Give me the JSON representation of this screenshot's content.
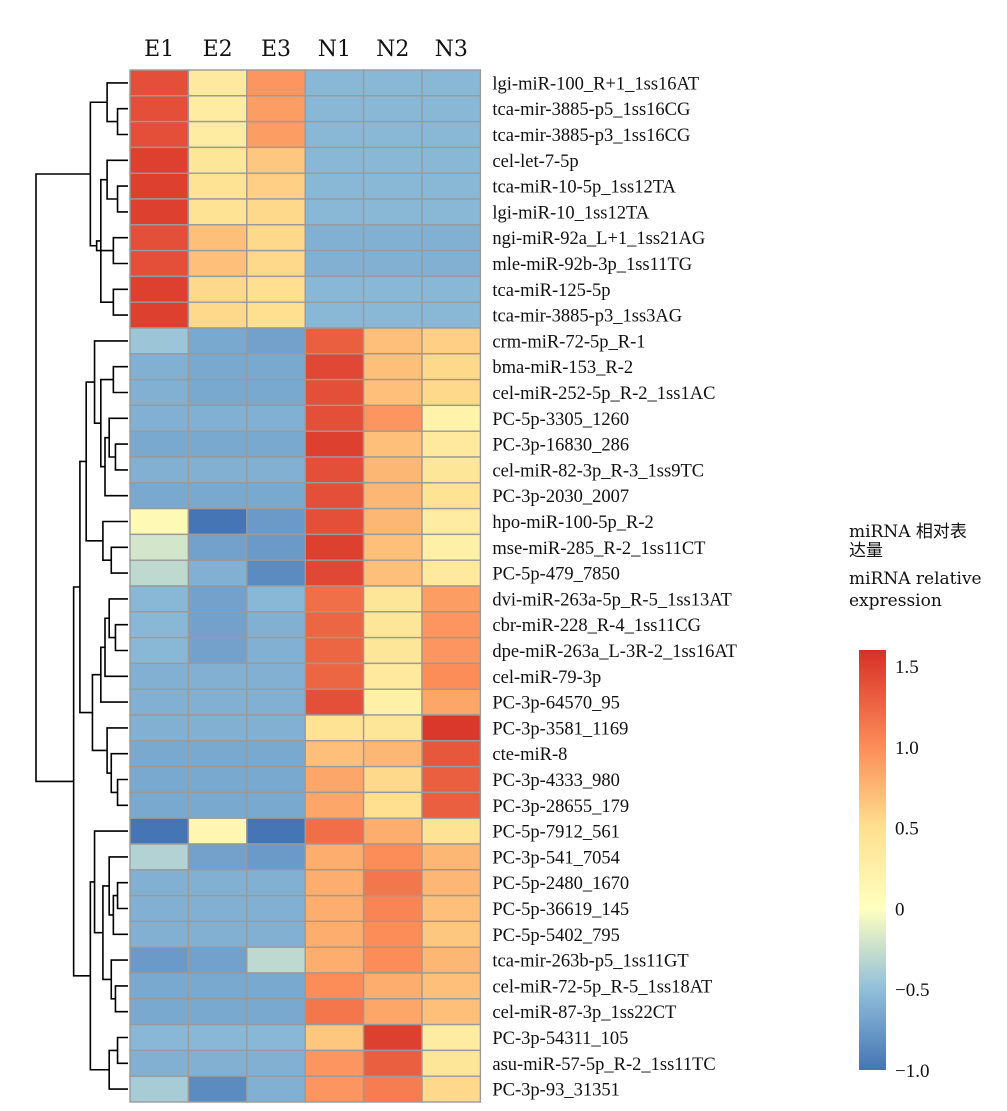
{
  "chart_data": {
    "type": "heatmap",
    "columns": [
      "E1",
      "E2",
      "E3",
      "N1",
      "N2",
      "N3"
    ],
    "rows": [
      "lgi-miR-100_R+1_1ss16AT",
      "tca-mir-3885-p5_1ss16CG",
      "tca-mir-3885-p3_1ss16CG",
      "cel-let-7-5p",
      "tca-miR-10-5p_1ss12TA",
      "lgi-miR-10_1ss12TA",
      "ngi-miR-92a_L+1_1ss21AG",
      "mle-miR-92b-3p_1ss11TG",
      "tca-miR-125-5p",
      "tca-mir-3885-p3_1ss3AG",
      "crm-miR-72-5p_R-1",
      "bma-miR-153_R-2",
      "cel-miR-252-5p_R-2_1ss1AC",
      "PC-5p-3305_1260",
      "PC-3p-16830_286",
      "cel-miR-82-3p_R-3_1ss9TC",
      "PC-3p-2030_2007",
      "hpo-miR-100-5p_R-2",
      "mse-miR-285_R-2_1ss11CT",
      "PC-5p-479_7850",
      "dvi-miR-263a-5p_R-5_1ss13AT",
      "cbr-miR-228_R-4_1ss11CG",
      "dpe-miR-263a_L-3R-2_1ss16AT",
      "cel-miR-79-3p",
      "PC-3p-64570_95",
      "PC-3p-3581_1169",
      "cte-miR-8",
      "PC-3p-4333_980",
      "PC-3p-28655_179",
      "PC-5p-7912_561",
      "PC-3p-541_7054",
      "PC-5p-2480_1670",
      "PC-5p-36619_145",
      "PC-5p-5402_795",
      "tca-mir-263b-p5_1ss11GT",
      "cel-miR-72-5p_R-5_1ss18AT",
      "cel-miR-87-3p_1ss22CT",
      "PC-3p-54311_105",
      "asu-miR-57-5p_R-2_1ss11TC",
      "PC-3p-93_31351"
    ],
    "values": [
      [
        1.4,
        0.35,
        0.95,
        -0.55,
        -0.55,
        -0.55
      ],
      [
        1.4,
        0.3,
        0.9,
        -0.55,
        -0.55,
        -0.55
      ],
      [
        1.4,
        0.3,
        0.9,
        -0.55,
        -0.55,
        -0.55
      ],
      [
        1.5,
        0.4,
        0.65,
        -0.55,
        -0.55,
        -0.55
      ],
      [
        1.5,
        0.45,
        0.6,
        -0.55,
        -0.55,
        -0.55
      ],
      [
        1.5,
        0.45,
        0.55,
        -0.55,
        -0.55,
        -0.55
      ],
      [
        1.4,
        0.7,
        0.55,
        -0.6,
        -0.6,
        -0.6
      ],
      [
        1.4,
        0.7,
        0.55,
        -0.6,
        -0.6,
        -0.6
      ],
      [
        1.5,
        0.55,
        0.5,
        -0.55,
        -0.55,
        -0.55
      ],
      [
        1.5,
        0.55,
        0.5,
        -0.55,
        -0.55,
        -0.55
      ],
      [
        -0.45,
        -0.65,
        -0.7,
        1.3,
        0.7,
        0.6
      ],
      [
        -0.6,
        -0.65,
        -0.65,
        1.45,
        0.7,
        0.55
      ],
      [
        -0.6,
        -0.65,
        -0.65,
        1.4,
        0.7,
        0.55
      ],
      [
        -0.6,
        -0.6,
        -0.6,
        1.4,
        0.95,
        0.2
      ],
      [
        -0.65,
        -0.65,
        -0.65,
        1.5,
        0.7,
        0.35
      ],
      [
        -0.6,
        -0.6,
        -0.6,
        1.4,
        0.75,
        0.4
      ],
      [
        -0.65,
        -0.65,
        -0.65,
        1.4,
        0.75,
        0.45
      ],
      [
        0.1,
        -1.05,
        -0.75,
        1.4,
        0.75,
        0.3
      ],
      [
        -0.2,
        -0.7,
        -0.75,
        1.5,
        0.7,
        0.25
      ],
      [
        -0.3,
        -0.6,
        -0.85,
        1.45,
        0.7,
        0.35
      ],
      [
        -0.55,
        -0.7,
        -0.55,
        1.2,
        0.4,
        0.9
      ],
      [
        -0.55,
        -0.7,
        -0.6,
        1.25,
        0.4,
        0.95
      ],
      [
        -0.55,
        -0.7,
        -0.6,
        1.25,
        0.4,
        0.95
      ],
      [
        -0.6,
        -0.6,
        -0.6,
        1.25,
        0.35,
        1.0
      ],
      [
        -0.6,
        -0.6,
        -0.6,
        1.4,
        0.25,
        0.85
      ],
      [
        -0.6,
        -0.6,
        -0.6,
        0.45,
        0.4,
        1.55
      ],
      [
        -0.65,
        -0.65,
        -0.65,
        0.7,
        0.75,
        1.35
      ],
      [
        -0.65,
        -0.65,
        -0.65,
        0.85,
        0.55,
        1.3
      ],
      [
        -0.65,
        -0.65,
        -0.65,
        0.85,
        0.5,
        1.3
      ],
      [
        -1.0,
        0.15,
        -1.0,
        1.2,
        0.8,
        0.45
      ],
      [
        -0.35,
        -0.7,
        -0.75,
        0.8,
        1.0,
        0.75
      ],
      [
        -0.6,
        -0.6,
        -0.6,
        0.8,
        1.15,
        0.75
      ],
      [
        -0.6,
        -0.6,
        -0.6,
        0.8,
        1.05,
        0.7
      ],
      [
        -0.6,
        -0.6,
        -0.6,
        0.8,
        1.0,
        0.65
      ],
      [
        -0.75,
        -0.7,
        -0.3,
        0.8,
        1.0,
        0.75
      ],
      [
        -0.65,
        -0.65,
        -0.65,
        1.0,
        0.8,
        0.7
      ],
      [
        -0.65,
        -0.65,
        -0.65,
        1.15,
        0.85,
        0.7
      ],
      [
        -0.55,
        -0.55,
        -0.55,
        0.65,
        1.5,
        0.3
      ],
      [
        -0.6,
        -0.6,
        -0.6,
        0.95,
        1.3,
        0.4
      ],
      [
        -0.4,
        -0.85,
        -0.6,
        0.95,
        1.1,
        0.55
      ]
    ],
    "color_scale": {
      "min": -1.0,
      "max": 1.6,
      "stops": [
        {
          "value": -1.0,
          "color": "#4575b4"
        },
        {
          "value": -0.5,
          "color": "#91bfdb"
        },
        {
          "value": 0.0,
          "color": "#ffffbf"
        },
        {
          "value": 0.5,
          "color": "#fee090"
        },
        {
          "value": 1.0,
          "color": "#fc8d59"
        },
        {
          "value": 1.6,
          "color": "#d73027"
        }
      ]
    },
    "cell_border_color": "#9a9a9a",
    "legend": {
      "title_lines": [
        "miRNA 相对表",
        "达量",
        "miRNA  relative",
        "expression"
      ],
      "ticks": [
        1.5,
        1.0,
        0.5,
        0,
        -0.5,
        -1.0
      ],
      "tick_labels": [
        "1.5",
        "1.0",
        "0.5",
        "0",
        "−0.5",
        "−1.0"
      ],
      "placement": "right"
    },
    "row_dendrogram": {
      "merges": [
        [
          -2,
          -3
        ],
        [
          -1,
          1
        ],
        [
          -5,
          -6
        ],
        [
          -4,
          3
        ],
        [
          -9,
          -10
        ],
        [
          4,
          5
        ],
        [
          -7,
          -8
        ],
        [
          6,
          7
        ],
        [
          2,
          8
        ],
        [
          -15,
          -16
        ],
        [
          -14,
          10
        ],
        [
          -17,
          11
        ],
        [
          -12,
          -13
        ],
        [
          12,
          13
        ],
        [
          -11,
          14
        ],
        [
          -19,
          -20
        ],
        [
          -18,
          16
        ],
        [
          15,
          17
        ],
        [
          -22,
          -23
        ],
        [
          -21,
          19
        ],
        [
          -24,
          20
        ],
        [
          -25,
          21
        ],
        [
          -28,
          -29
        ],
        [
          -27,
          23
        ],
        [
          -26,
          24
        ],
        [
          22,
          25
        ],
        [
          18,
          26
        ],
        [
          -32,
          -33
        ],
        [
          -34,
          28
        ],
        [
          -31,
          29
        ],
        [
          -36,
          -37
        ],
        [
          -35,
          31
        ],
        [
          30,
          32
        ],
        [
          -30,
          33
        ],
        [
          -38,
          -39
        ],
        [
          -40,
          35
        ],
        [
          34,
          36
        ],
        [
          27,
          37
        ],
        [
          9,
          38
        ]
      ],
      "heights": [
        0.5,
        1.0,
        0.5,
        1.0,
        0.7,
        1.3,
        0.7,
        1.5,
        1.8,
        0.6,
        0.9,
        1.1,
        0.7,
        1.3,
        1.6,
        0.8,
        1.2,
        2.0,
        0.6,
        0.9,
        1.1,
        1.3,
        0.5,
        0.8,
        1.0,
        1.7,
        2.3,
        0.5,
        0.7,
        0.9,
        0.6,
        0.8,
        1.2,
        1.6,
        0.5,
        0.9,
        1.8,
        2.6,
        4.4
      ]
    }
  }
}
